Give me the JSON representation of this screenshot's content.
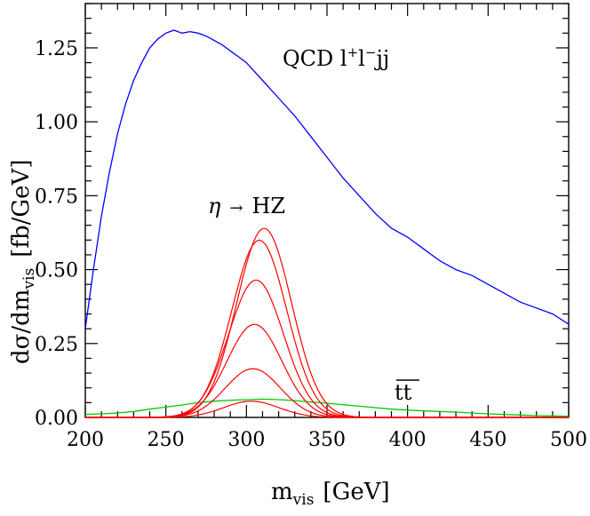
{
  "chart_data": {
    "type": "line",
    "xlabel": {
      "main": "m",
      "sub": "vis",
      "unit": "[GeV]"
    },
    "ylabel": {
      "pre": "dσ/dm",
      "sub": "vis",
      "unit": "[fb/GeV]"
    },
    "xlim": [
      200,
      500
    ],
    "ylim": [
      0,
      1.4
    ],
    "x_ticks": [
      200,
      250,
      300,
      350,
      400,
      450,
      500
    ],
    "x_tick_labels": [
      "200",
      "250",
      "300",
      "350",
      "400",
      "450",
      "500"
    ],
    "y_ticks": [
      0,
      0.25,
      0.5,
      0.75,
      1.0,
      1.25
    ],
    "y_tick_labels": [
      "0.00",
      "0.25",
      "0.50",
      "0.75",
      "1.00",
      "1.25"
    ],
    "grid": false,
    "annotations": {
      "qcd": {
        "base": "QCD l",
        "sup1": "+",
        "mid": "l",
        "sup2": "−",
        "end": "jj"
      },
      "signal": {
        "eta": "η",
        "arrow": "→",
        "rest": "HZ"
      },
      "ttbar": {
        "text": "tt"
      }
    },
    "series": [
      {
        "color": "#0000ff",
        "x": [
          200,
          205,
          210,
          215,
          220,
          225,
          230,
          235,
          240,
          245,
          250,
          255,
          260,
          265,
          270,
          275,
          280,
          285,
          290,
          295,
          300,
          310,
          320,
          330,
          340,
          350,
          360,
          370,
          380,
          390,
          400,
          410,
          420,
          430,
          440,
          450,
          460,
          470,
          480,
          490,
          500
        ],
        "y": [
          0.3,
          0.5,
          0.68,
          0.83,
          0.96,
          1.06,
          1.14,
          1.2,
          1.25,
          1.28,
          1.3,
          1.31,
          1.3,
          1.305,
          1.3,
          1.29,
          1.275,
          1.26,
          1.24,
          1.22,
          1.2,
          1.14,
          1.08,
          1.02,
          0.95,
          0.88,
          0.81,
          0.75,
          0.69,
          0.64,
          0.61,
          0.57,
          0.53,
          0.5,
          0.48,
          0.45,
          0.42,
          0.39,
          0.37,
          0.35,
          0.315
        ]
      },
      {
        "color": "#00cc00",
        "x": [
          200,
          210,
          220,
          230,
          240,
          250,
          260,
          270,
          280,
          290,
          300,
          310,
          320,
          330,
          340,
          350,
          360,
          370,
          380,
          390,
          400,
          410,
          420,
          430,
          440,
          450,
          460,
          470,
          480,
          490,
          500
        ],
        "y": [
          0.01,
          0.012,
          0.015,
          0.02,
          0.028,
          0.035,
          0.042,
          0.05,
          0.055,
          0.058,
          0.06,
          0.062,
          0.06,
          0.057,
          0.052,
          0.048,
          0.043,
          0.038,
          0.033,
          0.028,
          0.025,
          0.022,
          0.02,
          0.018,
          0.015,
          0.012,
          0.01,
          0.008,
          0.006,
          0.005,
          0.004
        ]
      }
    ],
    "signal_peaks": [
      {
        "color": "#ff0000",
        "center": 303,
        "amplitude": 0.055,
        "sigma": 17
      },
      {
        "color": "#ff0000",
        "center": 304,
        "amplitude": 0.165,
        "sigma": 17
      },
      {
        "color": "#ff0000",
        "center": 305,
        "amplitude": 0.315,
        "sigma": 17
      },
      {
        "color": "#ff0000",
        "center": 306,
        "amplitude": 0.465,
        "sigma": 17
      },
      {
        "color": "#ff0000",
        "center": 308,
        "amplitude": 0.6,
        "sigma": 17
      },
      {
        "color": "#ff0000",
        "center": 311,
        "amplitude": 0.64,
        "sigma": 17
      }
    ]
  }
}
